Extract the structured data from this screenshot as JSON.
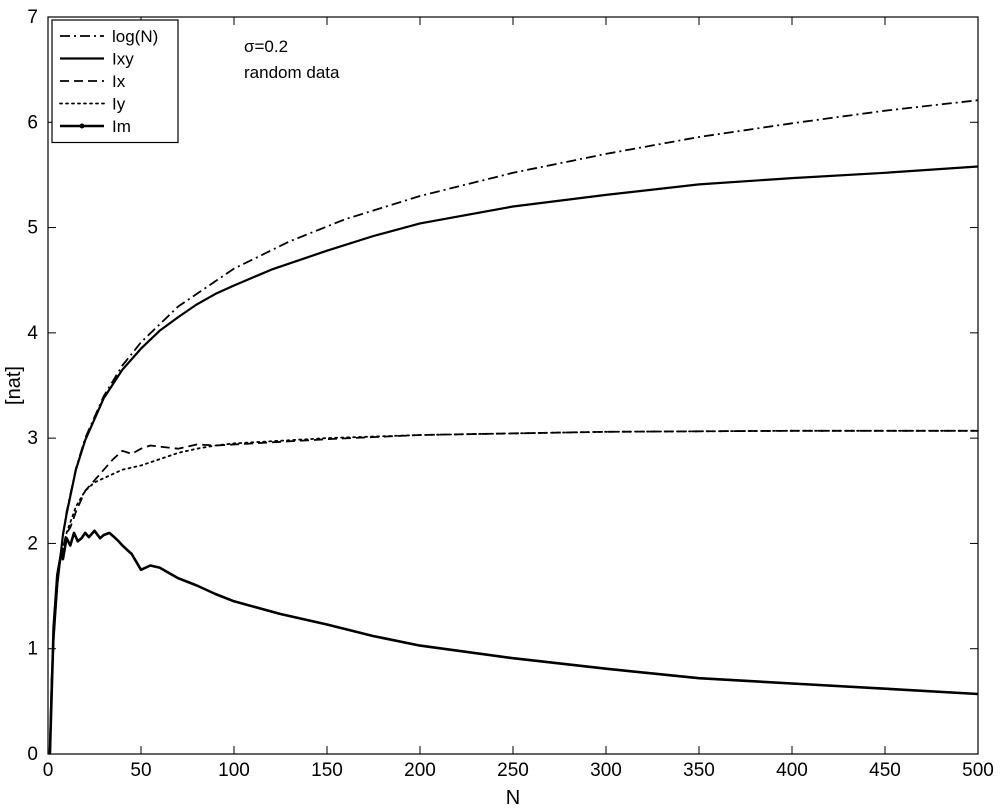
{
  "chart_data": {
    "type": "line",
    "title": "",
    "xlabel": "N",
    "ylabel": "[nat]",
    "xlim": [
      0,
      500
    ],
    "ylim": [
      0,
      7
    ],
    "xticks": [
      0,
      50,
      100,
      150,
      200,
      250,
      300,
      350,
      400,
      450,
      500
    ],
    "yticks": [
      0,
      1,
      2,
      3,
      4,
      5,
      6,
      7
    ],
    "grid": false,
    "legend_position": "top-left",
    "annotations": [
      "σ=0.2",
      "random data"
    ],
    "series": [
      {
        "name": "log(N)",
        "style": "dashdot",
        "x": [
          1,
          2,
          3,
          5,
          8,
          10,
          15,
          20,
          30,
          40,
          50,
          70,
          100,
          130,
          160,
          200,
          250,
          300,
          350,
          400,
          450,
          500
        ],
        "y": [
          0,
          0.69,
          1.1,
          1.61,
          2.08,
          2.3,
          2.71,
          3.0,
          3.4,
          3.69,
          3.91,
          4.25,
          4.61,
          4.87,
          5.08,
          5.3,
          5.52,
          5.7,
          5.86,
          5.99,
          6.11,
          6.21
        ]
      },
      {
        "name": "Ixy",
        "style": "solid",
        "x": [
          1,
          2,
          3,
          5,
          8,
          10,
          15,
          20,
          30,
          40,
          50,
          60,
          70,
          80,
          90,
          100,
          120,
          150,
          175,
          200,
          250,
          300,
          350,
          400,
          450,
          500
        ],
        "y": [
          0,
          0.69,
          1.1,
          1.61,
          2.08,
          2.28,
          2.7,
          2.98,
          3.38,
          3.65,
          3.85,
          4.02,
          4.15,
          4.27,
          4.37,
          4.45,
          4.6,
          4.78,
          4.92,
          5.04,
          5.2,
          5.31,
          5.41,
          5.47,
          5.52,
          5.58
        ]
      },
      {
        "name": "Ix",
        "style": "dashed",
        "x": [
          1,
          3,
          5,
          8,
          10,
          12,
          15,
          20,
          25,
          30,
          35,
          40,
          45,
          50,
          55,
          60,
          70,
          80,
          90,
          100,
          150,
          200,
          300,
          400,
          500
        ],
        "y": [
          0,
          1.2,
          1.7,
          1.95,
          2.1,
          2.15,
          2.3,
          2.5,
          2.6,
          2.7,
          2.8,
          2.88,
          2.85,
          2.9,
          2.93,
          2.92,
          2.9,
          2.94,
          2.93,
          2.94,
          2.99,
          3.03,
          3.06,
          3.07,
          3.07
        ]
      },
      {
        "name": "Iy",
        "style": "dotted",
        "x": [
          1,
          3,
          5,
          8,
          10,
          12,
          15,
          20,
          25,
          30,
          35,
          40,
          45,
          50,
          60,
          70,
          80,
          90,
          100,
          150,
          200,
          300,
          400,
          500
        ],
        "y": [
          0,
          1.2,
          1.7,
          1.95,
          2.1,
          2.2,
          2.35,
          2.5,
          2.58,
          2.62,
          2.66,
          2.7,
          2.72,
          2.74,
          2.8,
          2.86,
          2.9,
          2.93,
          2.95,
          3.0,
          3.03,
          3.06,
          3.07,
          3.07
        ]
      },
      {
        "name": "Im",
        "style": "solid-marker",
        "x": [
          1,
          3,
          5,
          7,
          8,
          10,
          12,
          14,
          16,
          18,
          20,
          22,
          25,
          28,
          30,
          33,
          35,
          38,
          40,
          45,
          50,
          55,
          60,
          70,
          80,
          90,
          100,
          125,
          150,
          175,
          200,
          250,
          300,
          350,
          400,
          450,
          500
        ],
        "y": [
          0,
          1.2,
          1.7,
          1.9,
          1.85,
          2.05,
          1.98,
          2.1,
          2.02,
          2.05,
          2.1,
          2.06,
          2.12,
          2.05,
          2.08,
          2.1,
          2.07,
          2.02,
          1.98,
          1.9,
          1.75,
          1.79,
          1.77,
          1.67,
          1.6,
          1.52,
          1.45,
          1.33,
          1.23,
          1.12,
          1.03,
          0.91,
          0.81,
          0.72,
          0.67,
          0.62,
          0.57
        ]
      }
    ]
  }
}
